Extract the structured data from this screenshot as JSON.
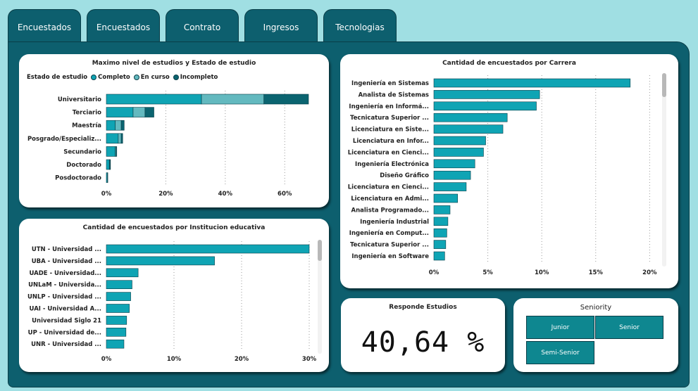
{
  "tabs": [
    {
      "label": "Encuestados"
    },
    {
      "label": "Encuestados"
    },
    {
      "label": "Contrato"
    },
    {
      "label": "Ingresos"
    },
    {
      "label": "Tecnologias"
    }
  ],
  "colors": {
    "completo": "#0fa4b4",
    "en_curso": "#63b9bf",
    "incompleto": "#0b6470",
    "bar": "#0fa4b4",
    "panel": "#0d5f6e",
    "background": "#a0dfe3"
  },
  "kpi": {
    "title": "Responde Estudios",
    "value": "40,64 %"
  },
  "seniority": {
    "title": "Seniority",
    "options": [
      "Junior",
      "Senior",
      "Semi-Senior"
    ]
  },
  "chart_data": [
    {
      "type": "bar",
      "orientation": "horizontal",
      "stacked": true,
      "title": "Maximo nivel de estudios y Estado de estudio",
      "legend_title": "Estado de estudio",
      "legend_position": "top-left",
      "categories": [
        "Universitario",
        "Terciario",
        "Maestría",
        "Posgrado/Especializ...",
        "Secundario",
        "Doctorado",
        "Posdoctorado"
      ],
      "series": [
        {
          "name": "Completo",
          "values": [
            32,
            9,
            3,
            4,
            3,
            1,
            0.3
          ]
        },
        {
          "name": "En curso",
          "values": [
            21,
            4,
            2,
            1,
            0.3,
            0.2,
            0.1
          ]
        },
        {
          "name": "Incompleto",
          "values": [
            15,
            3,
            1,
            0.5,
            0.2,
            0.1,
            0
          ]
        }
      ],
      "ticks": [
        "0%",
        "20%",
        "40%",
        "60%"
      ],
      "xlim": [
        0,
        68
      ],
      "grid": true
    },
    {
      "type": "bar",
      "orientation": "horizontal",
      "title": "Cantidad de encuestados por Institucion educativa",
      "categories": [
        "UTN - Universidad ...",
        "UBA - Universidad ...",
        "UADE - Universidad...",
        "UNLaM - Universida...",
        "UNLP - Universidad ...",
        "UAI - Universidad A...",
        "Universidad Siglo 21",
        "UP - Universidad de...",
        "UNR - Universidad ..."
      ],
      "values": [
        30,
        16,
        4.7,
        3.8,
        3.6,
        3.4,
        3.0,
        2.9,
        2.6
      ],
      "ticks": [
        "0%",
        "10%",
        "20%",
        "30%"
      ],
      "xlim": [
        0,
        30
      ],
      "grid": true
    },
    {
      "type": "bar",
      "orientation": "horizontal",
      "title": "Cantidad de encuestados por Carrera",
      "categories": [
        "Ingeniería en Sistemas",
        "Analista de Sistemas",
        "Ingeniería en Informá...",
        "Tecnicatura Superior ...",
        "Licenciatura en Siste...",
        "Licenciatura en Infor...",
        "Licenciatura en Cienci...",
        "Ingeniería Electrónica",
        "Diseño Gráfico",
        "Licenciatura en Cienci...",
        "Licenciatura en Admi...",
        "Analista Programado...",
        "Ingeniería Industrial",
        "Ingeniería en Comput...",
        "Tecnicatura Superior ...",
        "Ingeniería en Software"
      ],
      "values": [
        18.2,
        9.8,
        9.5,
        6.8,
        6.4,
        4.8,
        4.6,
        3.8,
        3.4,
        3.0,
        2.2,
        1.5,
        1.3,
        1.2,
        1.1,
        1.0
      ],
      "ticks": [
        "0%",
        "5%",
        "10%",
        "15%",
        "20%"
      ],
      "xlim": [
        0,
        20.5
      ],
      "grid": true
    }
  ]
}
